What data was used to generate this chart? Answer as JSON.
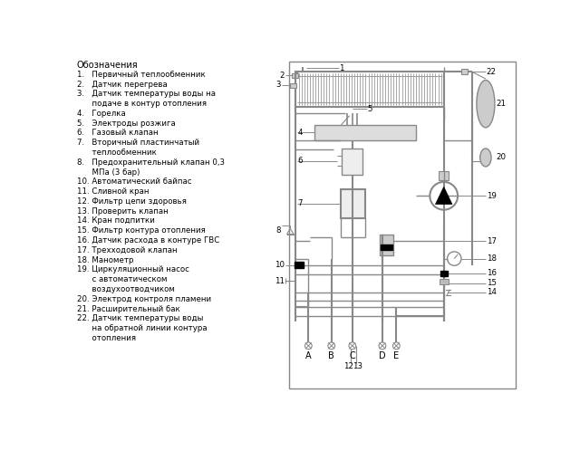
{
  "bg_color": "#ffffff",
  "line_color": "#888888",
  "text_color": "#000000",
  "legend_title": "Обозначения",
  "legend_lines": [
    "1.   Первичный теплообменник",
    "2.   Датчик перегрева",
    "3.   Датчик температуры воды на",
    "      подаче в контур отопления",
    "4.   Горелка",
    "5.   Электроды розжига",
    "6.   Газовый клапан",
    "7.   Вторичный пластинчатый",
    "      теплообменник",
    "8.   Предохранительный клапан 0,3",
    "      МПа (3 бар)",
    "10. Автоматический байпас",
    "11. Сливной кран",
    "12. Фильтр цепи здоровья",
    "13. Проверить клапан",
    "14. Кран подпитки",
    "15. Фильтр контура отопления",
    "16. Датчик расхода в контуре ГВС",
    "17. Трехходовой клапан",
    "18. Манометр",
    "19. Циркуляционный насос",
    "      с автоматическом",
    "      воздухоотводчиком",
    "20. Электрод контроля пламени",
    "21. Расширительный бак",
    "22. Датчик температуры воды",
    "      на обратной линии контура",
    "      отопления"
  ]
}
